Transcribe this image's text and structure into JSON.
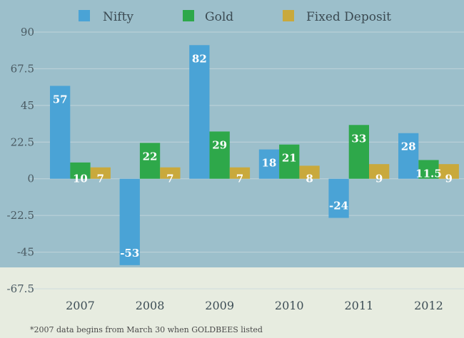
{
  "chart_data": {
    "type": "bar",
    "categories": [
      "2007",
      "2008",
      "2009",
      "2010",
      "2011",
      "2012"
    ],
    "series": [
      {
        "name": "Nifty",
        "values": [
          57,
          -53,
          82,
          18,
          -24,
          28
        ],
        "labels": [
          "57",
          "-53",
          "82",
          "18",
          "-24",
          "28"
        ],
        "color": "#4aa3d6"
      },
      {
        "name": "Gold",
        "values": [
          10,
          22,
          29,
          21,
          33,
          11.5
        ],
        "labels": [
          "10",
          "22",
          "29",
          "21",
          "33",
          "11.5"
        ],
        "color": "#2ea84a"
      },
      {
        "name": "Fixed Deposit",
        "values": [
          7,
          7,
          7,
          8,
          9,
          9
        ],
        "labels": [
          "7",
          "7",
          "7",
          "8",
          "9",
          "9"
        ],
        "color": "#c9a93c"
      }
    ],
    "yticks": [
      "90",
      "67.5",
      "45",
      "22.5",
      "0",
      "-22.5",
      "-45",
      "-67.5"
    ],
    "ytick_values": [
      90,
      67.5,
      45,
      22.5,
      0,
      -22.5,
      -45,
      -67.5
    ],
    "ylim": [
      -67.5,
      90
    ],
    "legend_position": "top",
    "grid": true,
    "title": "",
    "xlabel": "",
    "ylabel": "",
    "footnote": "*2007 data begins from March 30 when GOLDBEES listed"
  },
  "colors": {
    "plot_background": "#9cbfcb",
    "lower_background": "#e7ece0",
    "gridline": "#c9d9de"
  }
}
